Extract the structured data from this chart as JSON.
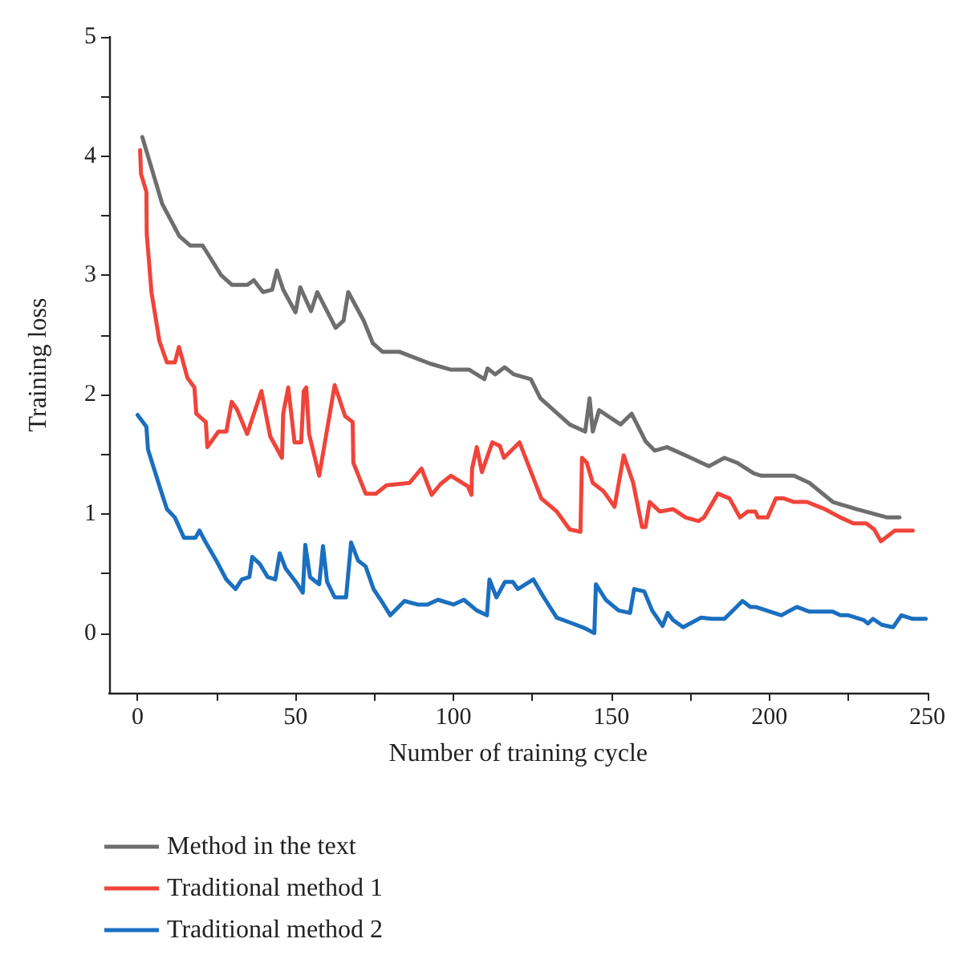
{
  "chart_data": {
    "type": "line",
    "xlabel": "Number of training cycle",
    "ylabel": "Training loss",
    "xlim": [
      -9,
      250
    ],
    "ylim": [
      -0.5,
      5
    ],
    "xticks": [
      0,
      {
        "value": 25,
        "label": null
      },
      50,
      {
        "value": 75,
        "label": null
      },
      100,
      {
        "value": 125,
        "label": null
      },
      150,
      {
        "value": 175,
        "label": null
      },
      200,
      {
        "value": 225,
        "label": null
      },
      250
    ],
    "yticks": [
      0,
      {
        "value": 0.5,
        "label": null
      },
      1,
      {
        "value": 1.5,
        "label": null
      },
      2,
      {
        "value": 2.5,
        "label": null
      },
      3,
      {
        "value": 3.5,
        "label": null
      },
      4,
      {
        "value": 4.5,
        "label": null
      },
      5
    ],
    "grid": false,
    "legend": "bottom",
    "marker": "none",
    "line_style": "solid",
    "series": [
      {
        "name": "Method in the text",
        "color": "#6e6e6e",
        "x": [
          1.5,
          7.8,
          13.2,
          16.7,
          20.6,
          26.5,
          29.9,
          34.8,
          36.8,
          39.7,
          42.6,
          44.1,
          46.1,
          50,
          51.5,
          54.9,
          56.9,
          62.7,
          65.2,
          66.7,
          71.6,
          74.5,
          77.5,
          82.8,
          92.6,
          99,
          104.9,
          109.8,
          110.8,
          113.2,
          116.2,
          119.1,
          124.5,
          127.5,
          136.8,
          141.7,
          143.1,
          144.1,
          146.1,
          152.9,
          156.4,
          160.8,
          163.7,
          167.6,
          173.5,
          180.9,
          185.8,
          189.7,
          195.1,
          197.5,
          207.8,
          212.7,
          220.1,
          227.5,
          237.3,
          241.2
        ],
        "values": [
          4.16,
          3.6,
          3.33,
          3.25,
          3.25,
          3.0,
          2.92,
          2.92,
          2.96,
          2.86,
          2.88,
          3.04,
          2.88,
          2.69,
          2.9,
          2.7,
          2.86,
          2.56,
          2.62,
          2.86,
          2.62,
          2.43,
          2.36,
          2.36,
          2.26,
          2.21,
          2.21,
          2.13,
          2.22,
          2.17,
          2.23,
          2.17,
          2.13,
          1.97,
          1.75,
          1.69,
          1.97,
          1.69,
          1.87,
          1.75,
          1.84,
          1.61,
          1.53,
          1.56,
          1.49,
          1.4,
          1.47,
          1.43,
          1.34,
          1.32,
          1.32,
          1.26,
          1.1,
          1.04,
          0.97,
          0.97
        ]
      },
      {
        "name": "Traditional method 1",
        "color": "#f0443a",
        "x": [
          0.8,
          1.1,
          2.8,
          2.9,
          4.4,
          6.9,
          9.3,
          11.8,
          13.1,
          15.8,
          18,
          18.6,
          21.6,
          22.1,
          25.6,
          28.1,
          29.8,
          31.4,
          34.7,
          39.2,
          42,
          45.7,
          46.1,
          47.7,
          49.7,
          51.8,
          52.6,
          53.4,
          54.3,
          57.5,
          62.4,
          65.7,
          68.1,
          68.3,
          72.2,
          75.5,
          78.8,
          86.1,
          89.9,
          93.1,
          95.9,
          99.2,
          104.6,
          105.7,
          105.9,
          107.4,
          109,
          112.3,
          114.7,
          116,
          120.9,
          123.7,
          127.8,
          132.7,
          136.8,
          140.2,
          140.7,
          142.2,
          144.1,
          147.5,
          151,
          153.9,
          156.9,
          159.7,
          160.8,
          162.1,
          165.3,
          169.5,
          173.5,
          177.6,
          179.3,
          183.7,
          187.4,
          190.7,
          193.1,
          195.6,
          196.4,
          199.4,
          202.1,
          204.6,
          207.8,
          211.9,
          217.6,
          222.5,
          226.6,
          230.7,
          233.2,
          235.3,
          239.7,
          245.4
        ],
        "values": [
          4.05,
          3.85,
          3.7,
          3.35,
          2.86,
          2.45,
          2.27,
          2.27,
          2.4,
          2.14,
          2.06,
          1.84,
          1.77,
          1.56,
          1.69,
          1.69,
          1.94,
          1.88,
          1.67,
          2.03,
          1.65,
          1.47,
          1.84,
          2.06,
          1.6,
          1.6,
          2.03,
          2.06,
          1.67,
          1.32,
          2.08,
          1.82,
          1.77,
          1.43,
          1.17,
          1.17,
          1.24,
          1.26,
          1.38,
          1.16,
          1.25,
          1.32,
          1.23,
          1.16,
          1.38,
          1.56,
          1.35,
          1.6,
          1.57,
          1.47,
          1.6,
          1.41,
          1.13,
          1.02,
          0.87,
          0.85,
          1.47,
          1.43,
          1.26,
          1.19,
          1.06,
          1.49,
          1.26,
          0.89,
          0.89,
          1.1,
          1.02,
          1.04,
          0.97,
          0.94,
          0.97,
          1.17,
          1.13,
          0.97,
          1.02,
          1.02,
          0.97,
          0.97,
          1.13,
          1.13,
          1.1,
          1.1,
          1.04,
          0.97,
          0.92,
          0.92,
          0.87,
          0.77,
          0.86,
          0.86
        ]
      },
      {
        "name": "Traditional method 2",
        "color": "#1a6fbf",
        "x": [
          0,
          2.8,
          3.3,
          5.2,
          7.7,
          9.3,
          11.8,
          14.7,
          18.3,
          19.6,
          21.6,
          24.9,
          28.1,
          31,
          33,
          35.4,
          36.3,
          38.7,
          41.2,
          43.6,
          45,
          46.9,
          50.1,
          52.3,
          53.1,
          54.6,
          57.5,
          58.7,
          60,
          62.4,
          66,
          67.6,
          69.8,
          72.2,
          74.7,
          77.9,
          80,
          84.5,
          88.6,
          91.8,
          95.1,
          100,
          103.3,
          107.4,
          110.6,
          111.4,
          113.6,
          116.3,
          118.8,
          120.4,
          125.3,
          128.6,
          132.7,
          136.8,
          141.7,
          144.6,
          145.1,
          148.2,
          152.3,
          155.9,
          157.2,
          160.4,
          162.9,
          166.2,
          167.8,
          169.5,
          172.7,
          178.4,
          181.7,
          185.8,
          189.6,
          191.5,
          194,
          195.6,
          203.8,
          208.7,
          212.7,
          220.1,
          222.5,
          225,
          229.9,
          231.2,
          232.8,
          235.6,
          239.2,
          241.8,
          245.4,
          249.5
        ],
        "values": [
          1.83,
          1.73,
          1.54,
          1.38,
          1.17,
          1.04,
          0.97,
          0.8,
          0.8,
          0.86,
          0.76,
          0.61,
          0.45,
          0.37,
          0.45,
          0.47,
          0.64,
          0.58,
          0.47,
          0.45,
          0.67,
          0.54,
          0.43,
          0.34,
          0.74,
          0.47,
          0.41,
          0.73,
          0.43,
          0.3,
          0.3,
          0.76,
          0.61,
          0.56,
          0.37,
          0.24,
          0.15,
          0.27,
          0.24,
          0.24,
          0.28,
          0.24,
          0.28,
          0.19,
          0.15,
          0.45,
          0.3,
          0.43,
          0.43,
          0.37,
          0.45,
          0.3,
          0.13,
          0.09,
          0.04,
          0.0,
          0.41,
          0.28,
          0.19,
          0.17,
          0.37,
          0.35,
          0.19,
          0.06,
          0.17,
          0.11,
          0.05,
          0.13,
          0.12,
          0.12,
          0.22,
          0.27,
          0.22,
          0.22,
          0.15,
          0.22,
          0.18,
          0.18,
          0.15,
          0.15,
          0.11,
          0.08,
          0.12,
          0.07,
          0.05,
          0.15,
          0.12,
          0.12
        ]
      }
    ]
  }
}
